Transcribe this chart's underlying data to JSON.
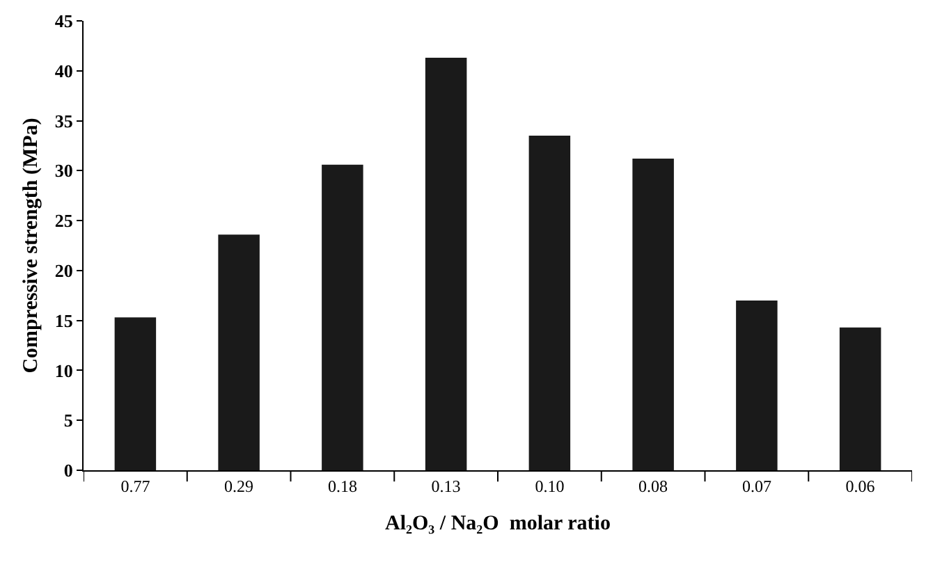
{
  "chart_data": {
    "type": "bar",
    "xlabel": "Al₂O₃ / Na₂O  molar ratio",
    "ylabel": "Compressive strength (MPa)",
    "categories": [
      "0.77",
      "0.29",
      "0.18",
      "0.13",
      "0.10",
      "0.08",
      "0.07",
      "0.06"
    ],
    "values": [
      15.3,
      23.6,
      30.6,
      41.3,
      33.5,
      31.2,
      17.0,
      14.3
    ],
    "color": "#1a1a1a",
    "ylim": [
      0,
      45
    ],
    "yticks": [
      0,
      5,
      10,
      15,
      20,
      25,
      30,
      35,
      40,
      45
    ],
    "grid": false,
    "legend": false
  }
}
